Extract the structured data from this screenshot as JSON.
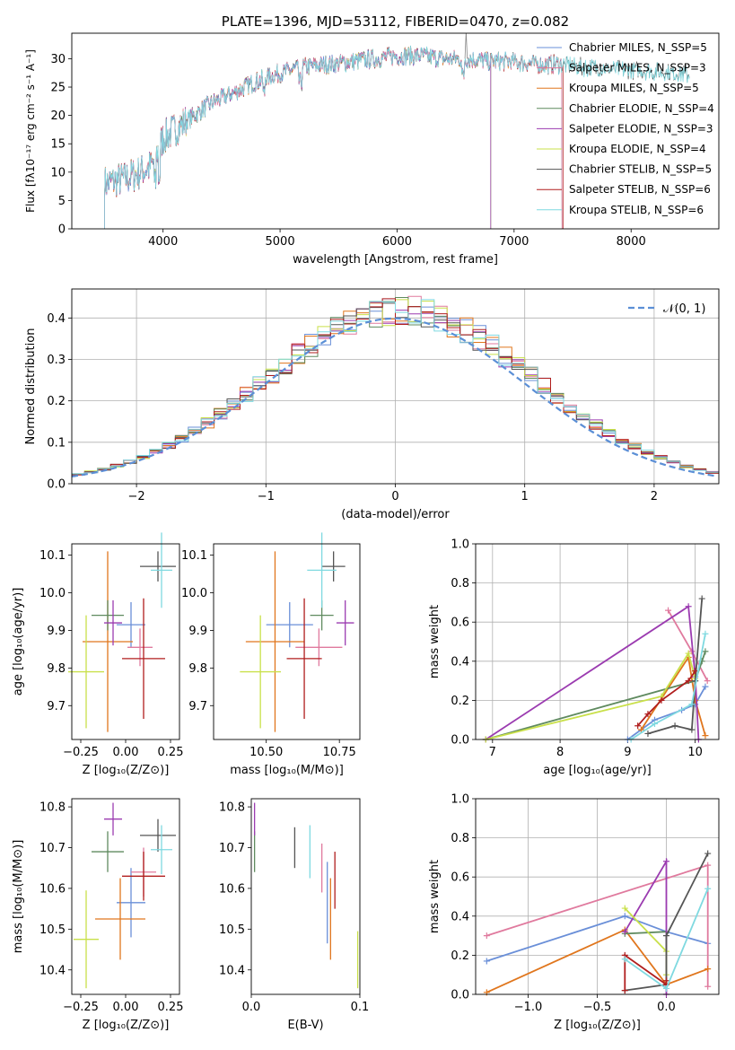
{
  "colors": {
    "chabrier_miles": "#6a8fd8",
    "salpeter_miles": "#e07a9e",
    "kroupa_miles": "#e0761d",
    "chabrier_elodie": "#5f8a5f",
    "salpeter_elodie": "#9b3bb0",
    "kroupa_elodie": "#c9e04a",
    "chabrier_stelib": "#555555",
    "salpeter_stelib": "#b01e1e",
    "kroupa_stelib": "#7fd9e0",
    "normal_curve": "#5b8fd6",
    "grid": "#b0b0b0"
  },
  "chart_data": [
    {
      "id": "spectrum",
      "type": "line",
      "title": "PLATE=1396, MJD=53112, FIBERID=0470, z=0.082",
      "xlabel": "wavelength [Angstrom, rest frame]",
      "ylabel": "Flux [fλ10⁻¹⁷ erg cm⁻² s⁻¹ A⁻¹]",
      "xlim": [
        3220,
        8750
      ],
      "ylim": [
        0,
        34.5
      ],
      "xticks": [
        "4000",
        "5000",
        "6000",
        "7000",
        "8000"
      ],
      "xtick_values": [
        4000,
        5000,
        6000,
        7000,
        8000
      ],
      "yticks": [
        "0",
        "5",
        "10",
        "15",
        "20",
        "25",
        "30"
      ],
      "ytick_values": [
        0,
        5,
        10,
        15,
        20,
        25,
        30
      ],
      "grid": false,
      "legend_position": "upper-right",
      "continuum": [
        [
          3500,
          8
        ],
        [
          3700,
          9
        ],
        [
          3900,
          11
        ],
        [
          4000,
          16
        ],
        [
          4200,
          19
        ],
        [
          4400,
          22
        ],
        [
          4600,
          24
        ],
        [
          4800,
          26
        ],
        [
          5000,
          27.5
        ],
        [
          5200,
          28.5
        ],
        [
          5400,
          29
        ],
        [
          5600,
          29.5
        ],
        [
          5800,
          30
        ],
        [
          6000,
          30.5
        ],
        [
          6200,
          30.5
        ],
        [
          6400,
          30
        ],
        [
          6600,
          30
        ],
        [
          6800,
          29.5
        ],
        [
          7000,
          29.5
        ],
        [
          7200,
          29
        ],
        [
          7400,
          29
        ],
        [
          7600,
          28.5
        ],
        [
          8000,
          28
        ],
        [
          8400,
          27.5
        ],
        [
          8500,
          27
        ]
      ],
      "series": [
        {
          "name": "Chabrier MILES, N_SSP=5",
          "ssp": "5",
          "key": "chabrier_miles"
        },
        {
          "name": "Salpeter MILES, N_SSP=3",
          "ssp": "3",
          "key": "salpeter_miles"
        },
        {
          "name": "Kroupa MILES, N_SSP=5",
          "ssp": "5",
          "key": "kroupa_miles"
        },
        {
          "name": "Chabrier ELODIE, N_SSP=4",
          "ssp": "4",
          "key": "chabrier_elodie"
        },
        {
          "name": "Salpeter ELODIE, N_SSP=3",
          "ssp": "3",
          "key": "salpeter_elodie"
        },
        {
          "name": "Kroupa ELODIE, N_SSP=4",
          "ssp": "4",
          "key": "kroupa_elodie"
        },
        {
          "name": "Chabrier STELIB, N_SSP=5",
          "ssp": "5",
          "key": "chabrier_stelib"
        },
        {
          "name": "Salpeter STELIB, N_SSP=6",
          "ssp": "6",
          "key": "salpeter_stelib"
        },
        {
          "name": "Kroupa STELIB, N_SSP=6",
          "ssp": "6",
          "key": "kroupa_stelib"
        }
      ]
    },
    {
      "id": "residuals",
      "type": "line",
      "xlabel": "(data-model)/error",
      "ylabel": "Normed distribution",
      "xlim": [
        -2.5,
        2.5
      ],
      "ylim": [
        0,
        0.47
      ],
      "xticks": [
        "−2",
        "−1",
        "0",
        "1",
        "2"
      ],
      "xtick_values": [
        -2,
        -1,
        0,
        1,
        2
      ],
      "yticks": [
        "0.0",
        "0.1",
        "0.2",
        "0.3",
        "0.4"
      ],
      "ytick_values": [
        0,
        0.1,
        0.2,
        0.3,
        0.4
      ],
      "grid": true,
      "legend_position": "upper-right",
      "curve_label": "𝒩(0, 1)",
      "bin_width": 0.1,
      "note": ""
    },
    {
      "id": "age_vs_Z",
      "type": "scatter",
      "xlabel": "Z [log₁₀(Z/Z⊙)]",
      "ylabel": "age  [log₁₀(age/yr)]",
      "xlim": [
        -0.3,
        0.3
      ],
      "ylim": [
        9.61,
        10.13
      ],
      "xticks": [
        "−0.25",
        "0.00",
        "0.25"
      ],
      "xtick_values": [
        -0.25,
        0,
        0.25
      ],
      "yticks": [
        "9.7",
        "9.8",
        "9.9",
        "10.0",
        "10.1"
      ],
      "ytick_values": [
        9.7,
        9.8,
        9.9,
        10.0,
        10.1
      ],
      "grid": false,
      "points": [
        {
          "key": "chabrier_miles",
          "x": 0.03,
          "y": 9.915,
          "xerr": 0.08,
          "yerr": 0.06
        },
        {
          "key": "salpeter_miles",
          "x": 0.08,
          "y": 9.855,
          "xerr": 0.07,
          "yerr": 0.05
        },
        {
          "key": "kroupa_miles",
          "x": -0.1,
          "y": 9.87,
          "xerr": 0.14,
          "yerr": 0.24
        },
        {
          "key": "chabrier_elodie",
          "x": -0.1,
          "y": 9.94,
          "xerr": 0.09,
          "yerr": 0.04
        },
        {
          "key": "salpeter_elodie",
          "x": -0.07,
          "y": 9.92,
          "xerr": 0.05,
          "yerr": 0.06
        },
        {
          "key": "kroupa_elodie",
          "x": -0.22,
          "y": 9.79,
          "xerr": 0.1,
          "yerr": 0.15
        },
        {
          "key": "chabrier_stelib",
          "x": 0.18,
          "y": 10.07,
          "xerr": 0.1,
          "yerr": 0.04
        },
        {
          "key": "salpeter_stelib",
          "x": 0.1,
          "y": 9.825,
          "xerr": 0.12,
          "yerr": 0.16
        },
        {
          "key": "kroupa_stelib",
          "x": 0.2,
          "y": 10.06,
          "xerr": 0.06,
          "yerr": 0.1
        }
      ]
    },
    {
      "id": "age_vs_mass",
      "type": "scatter",
      "xlabel": "mass [log₁₀(M/M⊙)]",
      "ylabel": "",
      "xlim": [
        10.32,
        10.82
      ],
      "ylim": [
        9.61,
        10.13
      ],
      "xticks": [
        "10.50",
        "10.75"
      ],
      "xtick_values": [
        10.5,
        10.75
      ],
      "yticks": [
        "9.7",
        "9.8",
        "9.9",
        "10.0",
        "10.1"
      ],
      "ytick_values": [
        9.7,
        9.8,
        9.9,
        10.0,
        10.1
      ],
      "grid": false,
      "points": [
        {
          "key": "chabrier_miles",
          "x": 10.58,
          "y": 9.915,
          "xerr": 0.08,
          "yerr": 0.06
        },
        {
          "key": "salpeter_miles",
          "x": 10.68,
          "y": 9.855,
          "xerr": 0.08,
          "yerr": 0.05
        },
        {
          "key": "kroupa_miles",
          "x": 10.53,
          "y": 9.87,
          "xerr": 0.1,
          "yerr": 0.24
        },
        {
          "key": "chabrier_elodie",
          "x": 10.69,
          "y": 9.94,
          "xerr": 0.04,
          "yerr": 0.04
        },
        {
          "key": "salpeter_elodie",
          "x": 10.77,
          "y": 9.92,
          "xerr": 0.03,
          "yerr": 0.06
        },
        {
          "key": "kroupa_elodie",
          "x": 10.48,
          "y": 9.79,
          "xerr": 0.07,
          "yerr": 0.15
        },
        {
          "key": "chabrier_stelib",
          "x": 10.73,
          "y": 10.07,
          "xerr": 0.04,
          "yerr": 0.04
        },
        {
          "key": "salpeter_stelib",
          "x": 10.63,
          "y": 9.825,
          "xerr": 0.06,
          "yerr": 0.16
        },
        {
          "key": "kroupa_stelib",
          "x": 10.69,
          "y": 10.06,
          "xerr": 0.05,
          "yerr": 0.1
        }
      ]
    },
    {
      "id": "weight_vs_age",
      "type": "line",
      "xlabel": "age  [log₁₀(age/yr)]",
      "ylabel": "mass weight",
      "xlim": [
        6.75,
        10.35
      ],
      "ylim": [
        0,
        1
      ],
      "xticks": [
        "7",
        "8",
        "9",
        "10"
      ],
      "xtick_values": [
        7,
        8,
        9,
        10
      ],
      "yticks": [
        "0.0",
        "0.2",
        "0.4",
        "0.6",
        "0.8",
        "1.0"
      ],
      "ytick_values": [
        0,
        0.2,
        0.4,
        0.6,
        0.8,
        1
      ],
      "grid": true,
      "series": [
        {
          "key": "chabrier_miles",
          "points": [
            [
              9.0,
              0.0
            ],
            [
              9.4,
              0.1
            ],
            [
              9.8,
              0.15
            ],
            [
              10.0,
              0.18
            ],
            [
              10.15,
              0.27
            ]
          ]
        },
        {
          "key": "salpeter_miles",
          "points": [
            [
              9.6,
              0.66
            ],
            [
              9.95,
              0.45
            ],
            [
              10.18,
              0.3
            ]
          ]
        },
        {
          "key": "kroupa_miles",
          "points": [
            [
              9.2,
              0.05
            ],
            [
              9.9,
              0.42
            ],
            [
              10.0,
              0.2
            ],
            [
              10.15,
              0.02
            ]
          ]
        },
        {
          "key": "chabrier_elodie",
          "points": [
            [
              6.9,
              0.0
            ],
            [
              10.0,
              0.3
            ],
            [
              10.1,
              0.4
            ],
            [
              10.15,
              0.45
            ]
          ]
        },
        {
          "key": "salpeter_elodie",
          "points": [
            [
              6.9,
              0.0
            ],
            [
              9.9,
              0.68
            ],
            [
              10.0,
              0.32
            ],
            [
              10.05,
              0.0
            ]
          ]
        },
        {
          "key": "kroupa_elodie",
          "points": [
            [
              6.9,
              0.0
            ],
            [
              9.5,
              0.22
            ],
            [
              9.9,
              0.44
            ],
            [
              10.0,
              0.31
            ]
          ]
        },
        {
          "key": "chabrier_stelib",
          "points": [
            [
              9.3,
              0.03
            ],
            [
              9.7,
              0.07
            ],
            [
              9.95,
              0.05
            ],
            [
              10.0,
              0.3
            ],
            [
              10.1,
              0.72
            ]
          ]
        },
        {
          "key": "salpeter_stelib",
          "points": [
            [
              9.15,
              0.07
            ],
            [
              9.3,
              0.13
            ],
            [
              9.5,
              0.2
            ],
            [
              9.9,
              0.3
            ],
            [
              10.0,
              0.35
            ]
          ]
        },
        {
          "key": "kroupa_stelib",
          "points": [
            [
              9.05,
              0.0
            ],
            [
              9.4,
              0.08
            ],
            [
              9.95,
              0.18
            ],
            [
              10.15,
              0.54
            ]
          ]
        }
      ]
    },
    {
      "id": "mass_vs_Z",
      "type": "scatter",
      "xlabel": "Z [log₁₀(Z/Z⊙)]",
      "ylabel": "mass [log₁₀(M/M⊙)]",
      "xlim": [
        -0.3,
        0.3
      ],
      "ylim": [
        10.34,
        10.82
      ],
      "xticks": [
        "−0.25",
        "0.00",
        "0.25"
      ],
      "xtick_values": [
        -0.25,
        0,
        0.25
      ],
      "yticks": [
        "10.4",
        "10.5",
        "10.6",
        "10.7",
        "10.8"
      ],
      "ytick_values": [
        10.4,
        10.5,
        10.6,
        10.7,
        10.8
      ],
      "grid": false,
      "points": [
        {
          "key": "chabrier_miles",
          "x": 0.03,
          "y": 10.565,
          "xerr": 0.08,
          "yerr": 0.085
        },
        {
          "key": "salpeter_miles",
          "x": 0.1,
          "y": 10.64,
          "xerr": 0.07,
          "yerr": 0.06
        },
        {
          "key": "kroupa_miles",
          "x": -0.03,
          "y": 10.525,
          "xerr": 0.14,
          "yerr": 0.1
        },
        {
          "key": "chabrier_elodie",
          "x": -0.1,
          "y": 10.69,
          "xerr": 0.09,
          "yerr": 0.05
        },
        {
          "key": "salpeter_elodie",
          "x": -0.07,
          "y": 10.77,
          "xerr": 0.05,
          "yerr": 0.04
        },
        {
          "key": "kroupa_elodie",
          "x": -0.22,
          "y": 10.475,
          "xerr": 0.07,
          "yerr": 0.12
        },
        {
          "key": "chabrier_stelib",
          "x": 0.18,
          "y": 10.73,
          "xerr": 0.1,
          "yerr": 0.04
        },
        {
          "key": "salpeter_stelib",
          "x": 0.1,
          "y": 10.63,
          "xerr": 0.12,
          "yerr": 0.06
        },
        {
          "key": "kroupa_stelib",
          "x": 0.2,
          "y": 10.695,
          "xerr": 0.06,
          "yerr": 0.06
        }
      ]
    },
    {
      "id": "mass_vs_EBV",
      "type": "scatter",
      "xlabel": "E(B-V)",
      "ylabel": "",
      "xlim": [
        0,
        0.1
      ],
      "ylim": [
        10.34,
        10.82
      ],
      "xticks": [
        "0.0",
        "0.1"
      ],
      "xtick_values": [
        0,
        0.1
      ],
      "yticks": [
        "10.4",
        "10.5",
        "10.6",
        "10.7",
        "10.8"
      ],
      "ytick_values": [
        10.4,
        10.5,
        10.6,
        10.7,
        10.8
      ],
      "grid": false,
      "points": [
        {
          "key": "chabrier_miles",
          "x": 0.07,
          "y": 10.565,
          "xerr": 0,
          "yerr": 0.1
        },
        {
          "key": "salpeter_miles",
          "x": 0.065,
          "y": 10.65,
          "xerr": 0,
          "yerr": 0.06
        },
        {
          "key": "kroupa_miles",
          "x": 0.073,
          "y": 10.525,
          "xerr": 0,
          "yerr": 0.1
        },
        {
          "key": "chabrier_elodie",
          "x": 0.003,
          "y": 10.69,
          "xerr": 0,
          "yerr": 0.05
        },
        {
          "key": "salpeter_elodie",
          "x": 0.003,
          "y": 10.77,
          "xerr": 0,
          "yerr": 0.04
        },
        {
          "key": "kroupa_elodie",
          "x": 0.098,
          "y": 10.425,
          "xerr": 0,
          "yerr": 0.07
        },
        {
          "key": "chabrier_stelib",
          "x": 0.04,
          "y": 10.7,
          "xerr": 0,
          "yerr": 0.05
        },
        {
          "key": "salpeter_stelib",
          "x": 0.077,
          "y": 10.62,
          "xerr": 0,
          "yerr": 0.07
        },
        {
          "key": "kroupa_stelib",
          "x": 0.054,
          "y": 10.69,
          "xerr": 0,
          "yerr": 0.065
        }
      ]
    },
    {
      "id": "weight_vs_Z",
      "type": "line",
      "xlabel": "Z [log₁₀(Z/Z⊙)]",
      "ylabel": "mass weight",
      "xlim": [
        -1.38,
        0.38
      ],
      "ylim": [
        0,
        1
      ],
      "xticks": [
        "−1.0",
        "−0.5",
        "0.0"
      ],
      "xtick_values": [
        -1,
        -0.5,
        0
      ],
      "yticks": [
        "0.0",
        "0.2",
        "0.4",
        "0.6",
        "0.8",
        "1.0"
      ],
      "ytick_values": [
        0,
        0.2,
        0.4,
        0.6,
        0.8,
        1
      ],
      "grid": true,
      "series": [
        {
          "key": "chabrier_miles",
          "points": [
            [
              -1.3,
              0.17
            ],
            [
              -0.3,
              0.4
            ],
            [
              0.0,
              0.32
            ],
            [
              0.3,
              0.26
            ]
          ]
        },
        {
          "key": "salpeter_miles",
          "points": [
            [
              -1.3,
              0.3
            ],
            [
              0.3,
              0.66
            ],
            [
              0.3,
              0.04
            ]
          ]
        },
        {
          "key": "kroupa_miles",
          "points": [
            [
              -1.3,
              0.01
            ],
            [
              -0.3,
              0.33
            ],
            [
              0.0,
              0.05
            ],
            [
              0.3,
              0.13
            ]
          ]
        },
        {
          "key": "chabrier_elodie",
          "points": [
            [
              -0.3,
              0.31
            ],
            [
              0.0,
              0.32
            ]
          ]
        },
        {
          "key": "salpeter_elodie",
          "points": [
            [
              -0.3,
              0.32
            ],
            [
              0.0,
              0.68
            ],
            [
              0.0,
              0.0
            ]
          ]
        },
        {
          "key": "kroupa_elodie",
          "points": [
            [
              -0.3,
              0.44
            ],
            [
              0.0,
              0.22
            ],
            [
              0.0,
              0.1
            ]
          ]
        },
        {
          "key": "chabrier_stelib",
          "points": [
            [
              -0.3,
              0.02
            ],
            [
              0.0,
              0.05
            ],
            [
              0.0,
              0.3
            ],
            [
              0.3,
              0.72
            ]
          ]
        },
        {
          "key": "salpeter_stelib",
          "points": [
            [
              -0.3,
              0.02
            ],
            [
              -0.3,
              0.2
            ],
            [
              0.0,
              0.05
            ],
            [
              0.0,
              0.07
            ]
          ]
        },
        {
          "key": "kroupa_stelib",
          "points": [
            [
              -0.3,
              0.18
            ],
            [
              0.0,
              0.03
            ],
            [
              0.3,
              0.54
            ]
          ]
        }
      ]
    }
  ]
}
